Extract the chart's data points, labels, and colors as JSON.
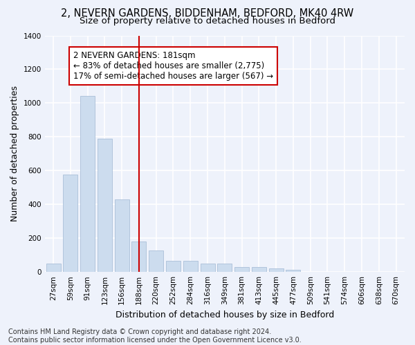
{
  "title1": "2, NEVERN GARDENS, BIDDENHAM, BEDFORD, MK40 4RW",
  "title2": "Size of property relative to detached houses in Bedford",
  "xlabel": "Distribution of detached houses by size in Bedford",
  "ylabel": "Number of detached properties",
  "bar_color": "#ccdcee",
  "bar_edgecolor": "#aabfd8",
  "categories": [
    "27sqm",
    "59sqm",
    "91sqm",
    "123sqm",
    "156sqm",
    "188sqm",
    "220sqm",
    "252sqm",
    "284sqm",
    "316sqm",
    "349sqm",
    "381sqm",
    "413sqm",
    "445sqm",
    "477sqm",
    "509sqm",
    "541sqm",
    "574sqm",
    "606sqm",
    "638sqm",
    "670sqm"
  ],
  "values": [
    48,
    575,
    1042,
    790,
    430,
    180,
    128,
    65,
    65,
    48,
    48,
    28,
    28,
    20,
    15,
    0,
    0,
    0,
    0,
    0,
    0
  ],
  "ylim": [
    0,
    1400
  ],
  "yticks": [
    0,
    200,
    400,
    600,
    800,
    1000,
    1200,
    1400
  ],
  "vline_x": 5.0,
  "vline_color": "#cc0000",
  "annotation_text": "2 NEVERN GARDENS: 181sqm\n← 83% of detached houses are smaller (2,775)\n17% of semi-detached houses are larger (567) →",
  "annotation_box_color": "#ffffff",
  "annotation_box_edgecolor": "#cc0000",
  "footer1": "Contains HM Land Registry data © Crown copyright and database right 2024.",
  "footer2": "Contains public sector information licensed under the Open Government Licence v3.0.",
  "background_color": "#eef2fb",
  "grid_color": "#ffffff",
  "title1_fontsize": 10.5,
  "title2_fontsize": 9.5,
  "tick_fontsize": 7.5,
  "label_fontsize": 9,
  "footer_fontsize": 7,
  "annotation_fontsize": 8.5
}
